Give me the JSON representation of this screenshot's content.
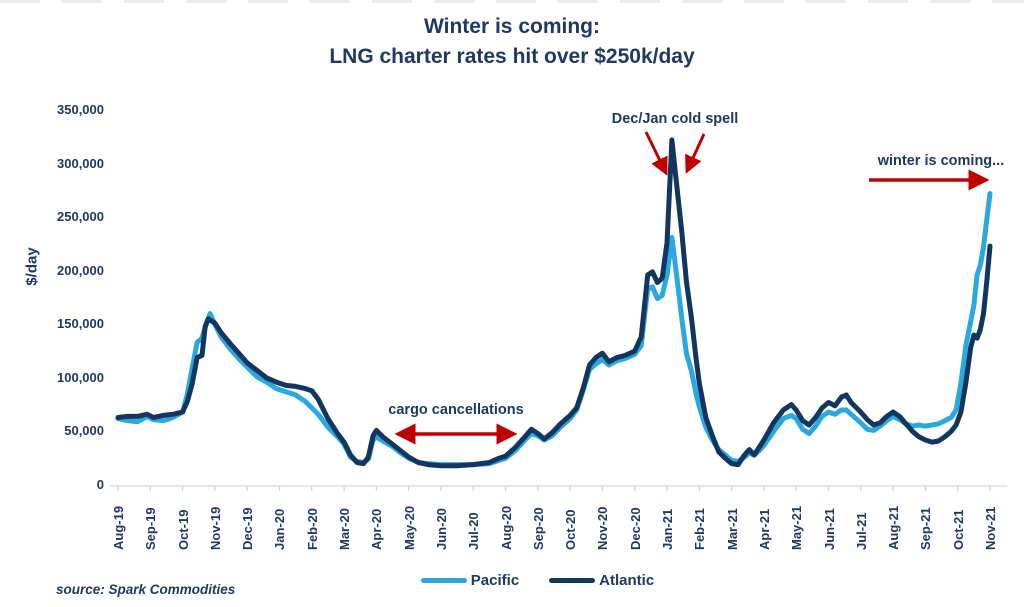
{
  "title": {
    "line1": "Winter is coming:",
    "line2": "LNG charter rates hit over $250k/day"
  },
  "y_axis": {
    "label": "$/day",
    "ticks": [
      "350,000",
      "300,000",
      "250,000",
      "200,000",
      "150,000",
      "100,000",
      "50,000",
      "0"
    ]
  },
  "x_axis": {
    "labels": [
      "Aug-19",
      "Sep-19",
      "Oct-19",
      "Nov-19",
      "Dec-19",
      "Jan-20",
      "Feb-20",
      "Mar-20",
      "Apr-20",
      "May-20",
      "Jun-20",
      "Jul-20",
      "Aug-20",
      "Sep-20",
      "Oct-20",
      "Nov-20",
      "Dec-20",
      "Jan-21",
      "Feb-21",
      "Mar-21",
      "Apr-21",
      "May-21",
      "Jun-21",
      "Jul-21",
      "Aug-21",
      "Sep-21",
      "Oct-21",
      "Nov-21"
    ]
  },
  "annotations": {
    "cold_spell": "Dec/Jan cold spell",
    "winter": "winter is coming...",
    "cargo": "cargo cancellations"
  },
  "legend": {
    "pacific": "Pacific",
    "atlantic": "Atlantic"
  },
  "source": "source: Spark Commodities",
  "colors": {
    "title_navy": "#1F3864",
    "pacific": "#29A9DF",
    "atlantic": "#12365F",
    "annotation_red": "#C00000",
    "axis_gray": "#D6D6D6"
  },
  "chart_data": {
    "type": "line",
    "title": "Winter is coming: LNG charter rates hit over $250k/day",
    "xlabel": "",
    "ylabel": "$/day",
    "ylim": [
      0,
      350000
    ],
    "grid": false,
    "legend_position": "bottom",
    "x_unit": "months since Aug-2019 (fractional)",
    "values_unit": "thousand USD per day",
    "categories": [
      "Aug-19",
      "Sep-19",
      "Oct-19",
      "Nov-19",
      "Dec-19",
      "Jan-20",
      "Feb-20",
      "Mar-20",
      "Apr-20",
      "May-20",
      "Jun-20",
      "Jul-20",
      "Aug-20",
      "Sep-20",
      "Oct-20",
      "Nov-20",
      "Dec-20",
      "Jan-21",
      "Feb-21",
      "Mar-21",
      "Apr-21",
      "May-21",
      "Jun-21",
      "Jul-21",
      "Aug-21",
      "Sep-21",
      "Oct-21",
      "Nov-21"
    ],
    "series": [
      {
        "name": "Pacific",
        "color": "#29A9DF",
        "points": [
          [
            0,
            62
          ],
          [
            0.3,
            60
          ],
          [
            0.6,
            59
          ],
          [
            0.9,
            64
          ],
          [
            1.1,
            61
          ],
          [
            1.4,
            60
          ],
          [
            1.7,
            63
          ],
          [
            2,
            68
          ],
          [
            2.15,
            85
          ],
          [
            2.3,
            110
          ],
          [
            2.45,
            133
          ],
          [
            2.6,
            137
          ],
          [
            2.75,
            152
          ],
          [
            2.85,
            160
          ],
          [
            3,
            150
          ],
          [
            3.2,
            138
          ],
          [
            3.5,
            126
          ],
          [
            3.8,
            116
          ],
          [
            4,
            110
          ],
          [
            4.3,
            101
          ],
          [
            4.6,
            96
          ],
          [
            4.9,
            90
          ],
          [
            5.2,
            87
          ],
          [
            5.5,
            84
          ],
          [
            5.8,
            78
          ],
          [
            6,
            72
          ],
          [
            6.2,
            66
          ],
          [
            6.5,
            54
          ],
          [
            6.8,
            45
          ],
          [
            7,
            38
          ],
          [
            7.2,
            26
          ],
          [
            7.4,
            22
          ],
          [
            7.6,
            21
          ],
          [
            7.75,
            24
          ],
          [
            7.9,
            42
          ],
          [
            8,
            45
          ],
          [
            8.2,
            41
          ],
          [
            8.5,
            36
          ],
          [
            8.75,
            30
          ],
          [
            9,
            25
          ],
          [
            9.3,
            21
          ],
          [
            9.6,
            20
          ],
          [
            10,
            19
          ],
          [
            10.5,
            19
          ],
          [
            11,
            19
          ],
          [
            11.5,
            20
          ],
          [
            11.8,
            23
          ],
          [
            12,
            25
          ],
          [
            12.3,
            32
          ],
          [
            12.6,
            42
          ],
          [
            12.8,
            48
          ],
          [
            13,
            46
          ],
          [
            13.2,
            42
          ],
          [
            13.45,
            46
          ],
          [
            13.7,
            54
          ],
          [
            14,
            62
          ],
          [
            14.2,
            70
          ],
          [
            14.4,
            88
          ],
          [
            14.6,
            108
          ],
          [
            14.8,
            113
          ],
          [
            15,
            117
          ],
          [
            15.2,
            112
          ],
          [
            15.45,
            116
          ],
          [
            15.7,
            118
          ],
          [
            16,
            122
          ],
          [
            16.2,
            130
          ],
          [
            16.4,
            183
          ],
          [
            16.55,
            185
          ],
          [
            16.7,
            174
          ],
          [
            16.85,
            177
          ],
          [
            17,
            196
          ],
          [
            17.15,
            231
          ],
          [
            17.3,
            195
          ],
          [
            17.45,
            157
          ],
          [
            17.6,
            123
          ],
          [
            17.75,
            107
          ],
          [
            17.9,
            85
          ],
          [
            18,
            73
          ],
          [
            18.2,
            54
          ],
          [
            18.4,
            42
          ],
          [
            18.6,
            33
          ],
          [
            18.8,
            28
          ],
          [
            19,
            23
          ],
          [
            19.2,
            22
          ],
          [
            19.4,
            26
          ],
          [
            19.55,
            30
          ],
          [
            19.7,
            28
          ],
          [
            19.85,
            32
          ],
          [
            20,
            37
          ],
          [
            20.3,
            50
          ],
          [
            20.6,
            62
          ],
          [
            20.85,
            65
          ],
          [
            21,
            62
          ],
          [
            21.2,
            52
          ],
          [
            21.4,
            48
          ],
          [
            21.6,
            55
          ],
          [
            21.8,
            64
          ],
          [
            22,
            68
          ],
          [
            22.2,
            66
          ],
          [
            22.4,
            70
          ],
          [
            22.55,
            70
          ],
          [
            22.7,
            66
          ],
          [
            23,
            58
          ],
          [
            23.2,
            52
          ],
          [
            23.4,
            51
          ],
          [
            23.6,
            55
          ],
          [
            23.8,
            60
          ],
          [
            24,
            64
          ],
          [
            24.2,
            61
          ],
          [
            24.4,
            57
          ],
          [
            24.6,
            55
          ],
          [
            24.8,
            56
          ],
          [
            25,
            55
          ],
          [
            25.2,
            56
          ],
          [
            25.4,
            57
          ],
          [
            25.6,
            60
          ],
          [
            25.8,
            63
          ],
          [
            25.95,
            70
          ],
          [
            26.1,
            95
          ],
          [
            26.25,
            130
          ],
          [
            26.4,
            152
          ],
          [
            26.5,
            168
          ],
          [
            26.6,
            196
          ],
          [
            26.7,
            205
          ],
          [
            26.8,
            222
          ],
          [
            26.9,
            248
          ],
          [
            27,
            272
          ]
        ]
      },
      {
        "name": "Atlantic",
        "color": "#12365F",
        "points": [
          [
            0,
            63
          ],
          [
            0.3,
            64
          ],
          [
            0.6,
            64
          ],
          [
            0.9,
            66
          ],
          [
            1.1,
            63
          ],
          [
            1.4,
            65
          ],
          [
            1.7,
            66
          ],
          [
            2,
            68
          ],
          [
            2.15,
            78
          ],
          [
            2.3,
            95
          ],
          [
            2.45,
            119
          ],
          [
            2.6,
            121
          ],
          [
            2.7,
            148
          ],
          [
            2.8,
            155
          ],
          [
            3,
            151
          ],
          [
            3.2,
            142
          ],
          [
            3.5,
            131
          ],
          [
            3.8,
            121
          ],
          [
            4,
            114
          ],
          [
            4.3,
            107
          ],
          [
            4.6,
            100
          ],
          [
            4.9,
            96
          ],
          [
            5.2,
            93
          ],
          [
            5.5,
            92
          ],
          [
            5.8,
            90
          ],
          [
            6,
            88
          ],
          [
            6.2,
            80
          ],
          [
            6.5,
            62
          ],
          [
            6.8,
            48
          ],
          [
            7,
            40
          ],
          [
            7.2,
            28
          ],
          [
            7.4,
            21
          ],
          [
            7.6,
            20
          ],
          [
            7.75,
            26
          ],
          [
            7.9,
            46
          ],
          [
            8,
            51
          ],
          [
            8.2,
            45
          ],
          [
            8.5,
            38
          ],
          [
            8.75,
            32
          ],
          [
            9,
            26
          ],
          [
            9.3,
            21
          ],
          [
            9.6,
            19
          ],
          [
            10,
            18
          ],
          [
            10.5,
            18
          ],
          [
            11,
            19
          ],
          [
            11.5,
            21
          ],
          [
            11.8,
            25
          ],
          [
            12,
            27
          ],
          [
            12.3,
            35
          ],
          [
            12.6,
            45
          ],
          [
            12.8,
            52
          ],
          [
            13,
            48
          ],
          [
            13.2,
            43
          ],
          [
            13.45,
            49
          ],
          [
            13.7,
            57
          ],
          [
            14,
            65
          ],
          [
            14.2,
            72
          ],
          [
            14.4,
            90
          ],
          [
            14.6,
            112
          ],
          [
            14.8,
            119
          ],
          [
            15,
            123
          ],
          [
            15.2,
            115
          ],
          [
            15.45,
            119
          ],
          [
            15.7,
            121
          ],
          [
            16,
            125
          ],
          [
            16.2,
            138
          ],
          [
            16.4,
            196
          ],
          [
            16.55,
            199
          ],
          [
            16.7,
            189
          ],
          [
            16.85,
            193
          ],
          [
            17,
            226
          ],
          [
            17.15,
            322
          ],
          [
            17.3,
            280
          ],
          [
            17.45,
            238
          ],
          [
            17.6,
            190
          ],
          [
            17.75,
            157
          ],
          [
            17.9,
            118
          ],
          [
            18,
            95
          ],
          [
            18.2,
            63
          ],
          [
            18.4,
            46
          ],
          [
            18.6,
            31
          ],
          [
            18.8,
            25
          ],
          [
            19,
            20
          ],
          [
            19.2,
            19
          ],
          [
            19.4,
            28
          ],
          [
            19.55,
            33
          ],
          [
            19.7,
            28
          ],
          [
            19.85,
            35
          ],
          [
            20,
            42
          ],
          [
            20.3,
            58
          ],
          [
            20.6,
            70
          ],
          [
            20.85,
            75
          ],
          [
            21,
            70
          ],
          [
            21.2,
            60
          ],
          [
            21.4,
            56
          ],
          [
            21.6,
            63
          ],
          [
            21.8,
            72
          ],
          [
            22,
            77
          ],
          [
            22.2,
            74
          ],
          [
            22.4,
            82
          ],
          [
            22.55,
            84
          ],
          [
            22.7,
            77
          ],
          [
            23,
            68
          ],
          [
            23.2,
            61
          ],
          [
            23.4,
            56
          ],
          [
            23.6,
            58
          ],
          [
            23.8,
            64
          ],
          [
            24,
            68
          ],
          [
            24.2,
            64
          ],
          [
            24.4,
            57
          ],
          [
            24.6,
            50
          ],
          [
            24.8,
            45
          ],
          [
            25,
            42
          ],
          [
            25.2,
            40
          ],
          [
            25.4,
            41
          ],
          [
            25.6,
            45
          ],
          [
            25.8,
            50
          ],
          [
            25.95,
            56
          ],
          [
            26.1,
            68
          ],
          [
            26.25,
            95
          ],
          [
            26.4,
            128
          ],
          [
            26.5,
            140
          ],
          [
            26.6,
            137
          ],
          [
            26.7,
            145
          ],
          [
            26.8,
            160
          ],
          [
            26.9,
            190
          ],
          [
            27,
            223
          ]
        ]
      }
    ],
    "annotations": [
      {
        "text": "Dec/Jan cold spell",
        "target": "Jan-21 peak, Atlantic ~322k / Pacific ~231k"
      },
      {
        "text": "cargo cancellations",
        "target": "Apr-20 to Aug-20 trough ~18-25k"
      },
      {
        "text": "winter is coming...",
        "target": "Nov-21 rise, Pacific ~272k / Atlantic ~223k"
      }
    ]
  }
}
